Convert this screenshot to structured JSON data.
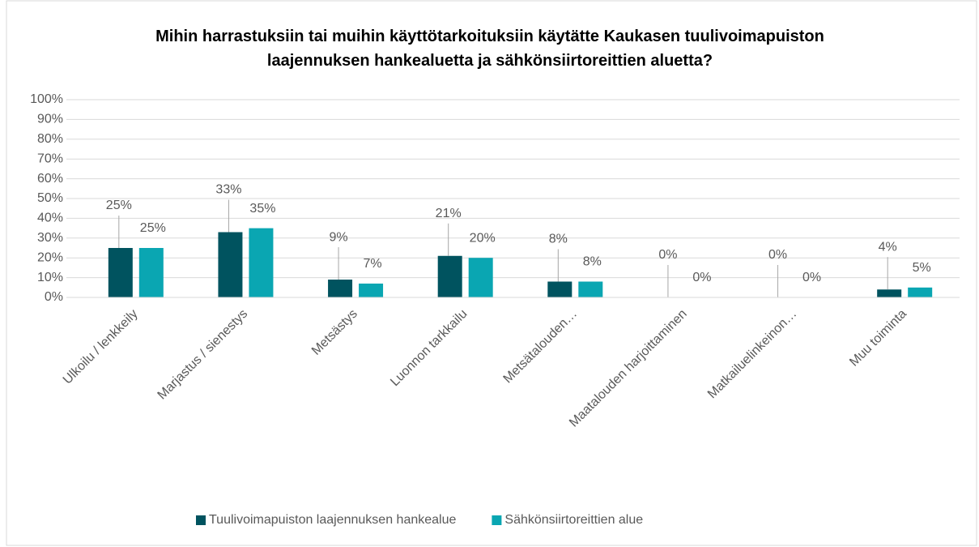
{
  "chart_data": {
    "type": "bar",
    "title": "Mihin harrastuksiin tai muihin käyttötarkoituksiin käytätte Kaukasen tuulivoimapuiston laajennuksen hankealuetta ja sähkönsiirtoreittien aluetta?",
    "categories": [
      "Ulkoilu / lenkkeily",
      "Marjastus / sienestys",
      "Metsästys",
      "Luonnon tarkkailu",
      "Metsätalouden…",
      "Maatalouden harjoittaminen",
      "Matkailuelinkeinon…",
      "Muu toiminta"
    ],
    "series": [
      {
        "name": "Tuulivoimapuiston laajennuksen hankealue",
        "color": "#00535f",
        "values": [
          25,
          33,
          9,
          21,
          8,
          0,
          0,
          4
        ],
        "value_labels": [
          "25%",
          "33%",
          "9%",
          "21%",
          "8%",
          "0%",
          "0%",
          "4%"
        ]
      },
      {
        "name": "Sähkönsiirtoreittien alue",
        "color": "#0aa6b2",
        "values": [
          25,
          35,
          7,
          20,
          8,
          0,
          0,
          5
        ],
        "value_labels": [
          "25%",
          "35%",
          "7%",
          "20%",
          "8%",
          "0%",
          "0%",
          "5%"
        ]
      }
    ],
    "ylim": [
      0,
      100
    ],
    "yticks": [
      {
        "value": 0,
        "label": "0%"
      },
      {
        "value": 10,
        "label": "10%"
      },
      {
        "value": 20,
        "label": "20%"
      },
      {
        "value": 30,
        "label": "30%"
      },
      {
        "value": 40,
        "label": "40%"
      },
      {
        "value": 50,
        "label": "50%"
      },
      {
        "value": 60,
        "label": "60%"
      },
      {
        "value": 70,
        "label": "70%"
      },
      {
        "value": 80,
        "label": "80%"
      },
      {
        "value": 90,
        "label": "90%"
      },
      {
        "value": 100,
        "label": "100%"
      }
    ],
    "grid": true,
    "legend": "bottom"
  }
}
